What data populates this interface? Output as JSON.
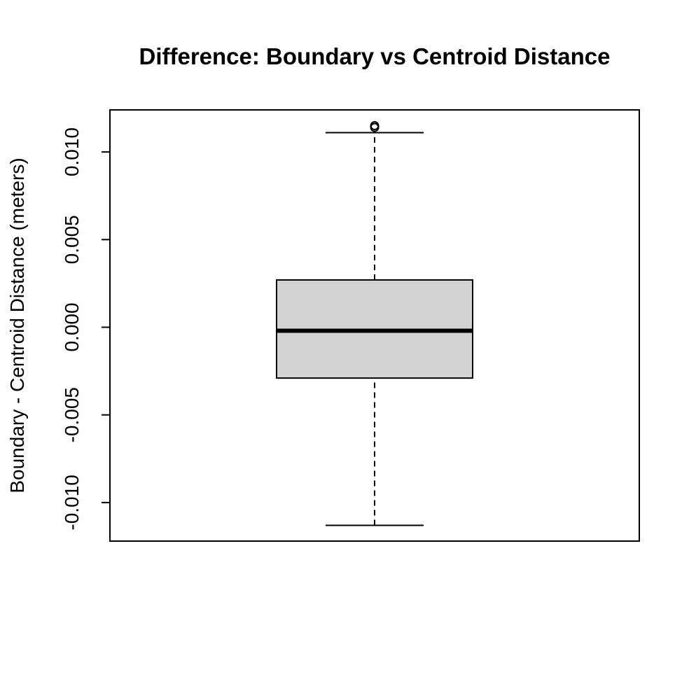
{
  "chart_data": {
    "type": "box",
    "title": "Difference: Boundary vs Centroid Distance",
    "xlabel": "",
    "ylabel": "Boundary - Centroid Distance (meters)",
    "ylim": [
      -0.0122,
      0.0124
    ],
    "y_ticks": [
      -0.01,
      -0.005,
      0.0,
      0.005,
      0.01
    ],
    "y_tick_labels": [
      "-0.010",
      "-0.005",
      "0.000",
      "0.005",
      "0.010"
    ],
    "grid": false,
    "box": {
      "whisker_low": -0.0113,
      "q1": -0.0029,
      "median": -0.0002,
      "q3": 0.0027,
      "whisker_high": 0.0111,
      "outliers": [
        0.0114,
        0.0115
      ]
    },
    "colors": {
      "box_fill": "#d3d3d3",
      "line": "#000000"
    }
  }
}
